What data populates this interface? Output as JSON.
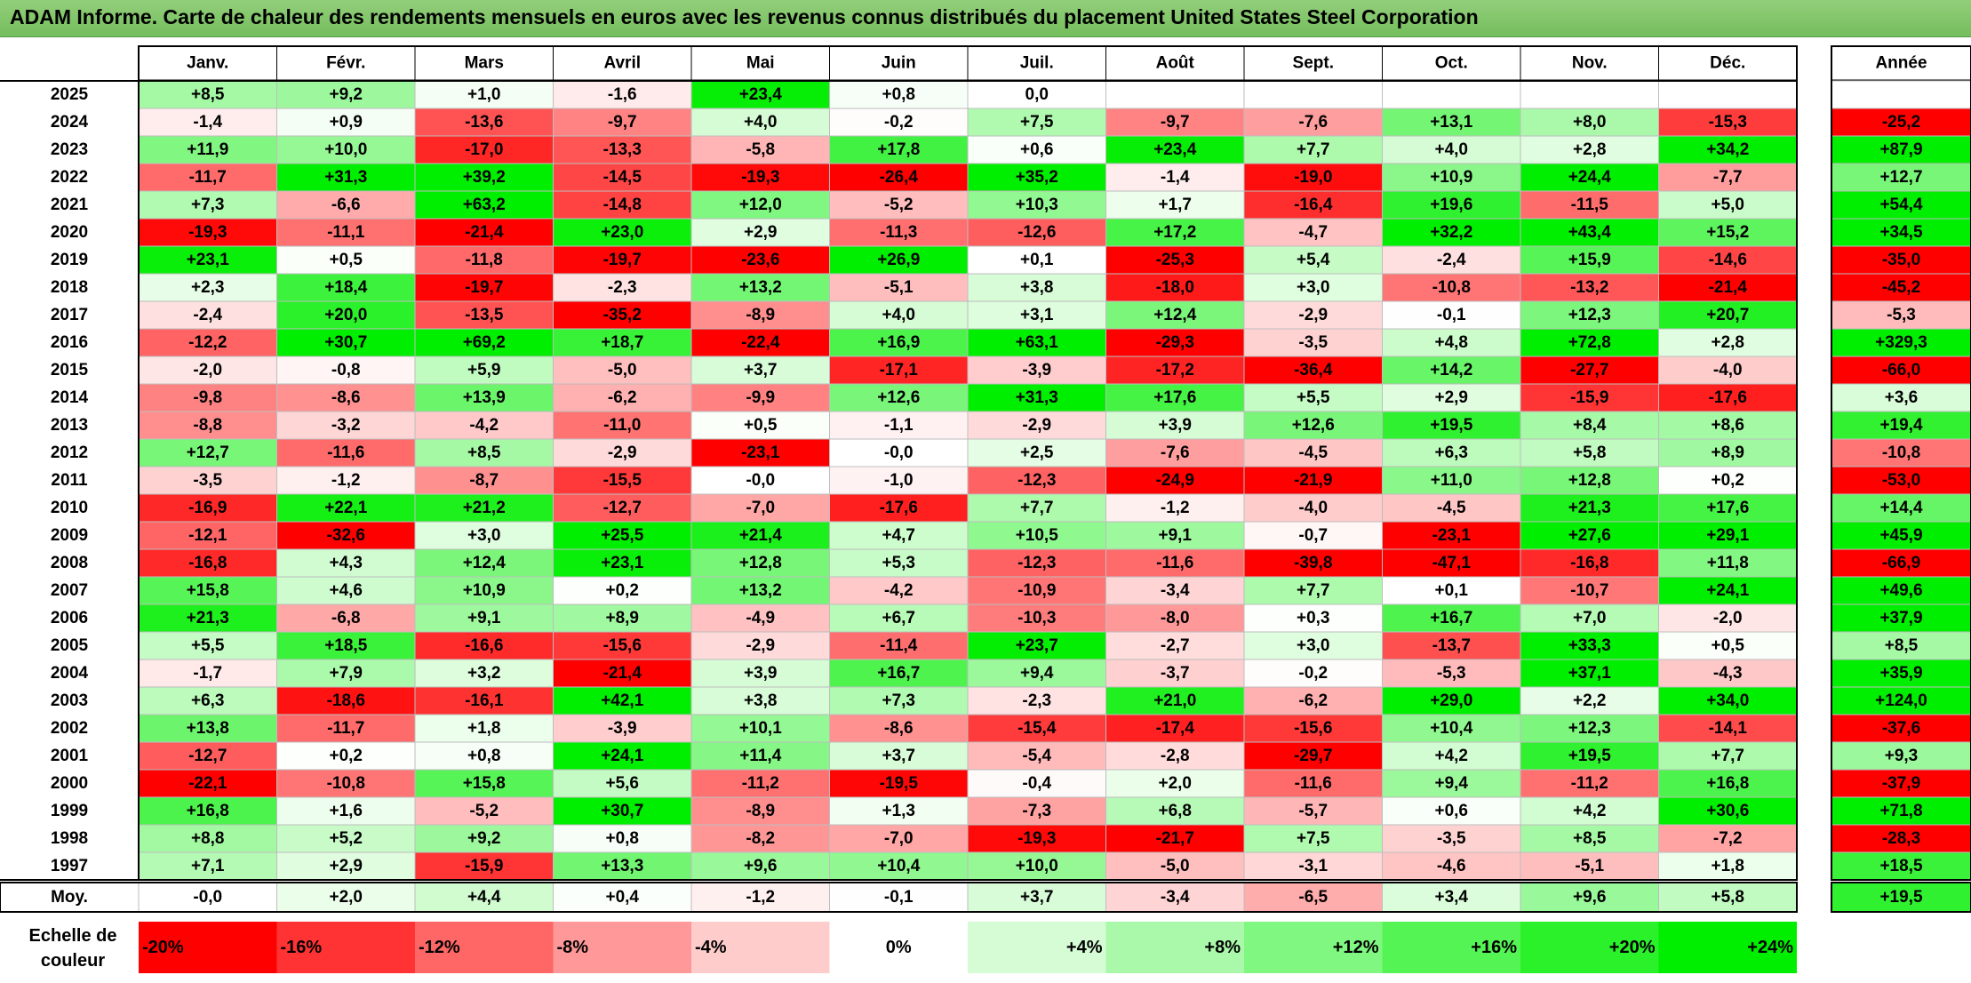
{
  "title": "ADAM Informe. Carte de chaleur des rendements mensuels en euros avec les revenus connus distribués du placement United States Steel Corporation",
  "chart_data": {
    "type": "heatmap",
    "title": "ADAM Informe. Carte de chaleur des rendements mensuels en euros avec les revenus connus distribués du placement United States Steel Corporation",
    "columns": [
      "Janv.",
      "Févr.",
      "Mars",
      "Avril",
      "Mai",
      "Juin",
      "Juil.",
      "Août",
      "Sept.",
      "Oct.",
      "Nov.",
      "Déc."
    ],
    "year_column_label": "Année",
    "average_row_label": "Moy.",
    "rows": [
      {
        "year": "2025",
        "months": [
          "+8,5",
          "+9,2",
          "+1,0",
          "-1,6",
          "+23,4",
          "+0,8",
          "0,0",
          "",
          "",
          "",
          "",
          ""
        ],
        "annual": ""
      },
      {
        "year": "2024",
        "months": [
          "-1,4",
          "+0,9",
          "-13,6",
          "-9,7",
          "+4,0",
          "-0,2",
          "+7,5",
          "-9,7",
          "-7,6",
          "+13,1",
          "+8,0",
          "-15,3"
        ],
        "annual": "-25,2"
      },
      {
        "year": "2023",
        "months": [
          "+11,9",
          "+10,0",
          "-17,0",
          "-13,3",
          "-5,8",
          "+17,8",
          "+0,6",
          "+23,4",
          "+7,7",
          "+4,0",
          "+2,8",
          "+34,2"
        ],
        "annual": "+87,9"
      },
      {
        "year": "2022",
        "months": [
          "-11,7",
          "+31,3",
          "+39,2",
          "-14,5",
          "-19,3",
          "-26,4",
          "+35,2",
          "-1,4",
          "-19,0",
          "+10,9",
          "+24,4",
          "-7,7"
        ],
        "annual": "+12,7"
      },
      {
        "year": "2021",
        "months": [
          "+7,3",
          "-6,6",
          "+63,2",
          "-14,8",
          "+12,0",
          "-5,2",
          "+10,3",
          "+1,7",
          "-16,4",
          "+19,6",
          "-11,5",
          "+5,0"
        ],
        "annual": "+54,4"
      },
      {
        "year": "2020",
        "months": [
          "-19,3",
          "-11,1",
          "-21,4",
          "+23,0",
          "+2,9",
          "-11,3",
          "-12,6",
          "+17,2",
          "-4,7",
          "+32,2",
          "+43,4",
          "+15,2"
        ],
        "annual": "+34,5"
      },
      {
        "year": "2019",
        "months": [
          "+23,1",
          "+0,5",
          "-11,8",
          "-19,7",
          "-23,6",
          "+26,9",
          "+0,1",
          "-25,3",
          "+5,4",
          "-2,4",
          "+15,9",
          "-14,6"
        ],
        "annual": "-35,0"
      },
      {
        "year": "2018",
        "months": [
          "+2,3",
          "+18,4",
          "-19,7",
          "-2,3",
          "+13,2",
          "-5,1",
          "+3,8",
          "-18,0",
          "+3,0",
          "-10,8",
          "-13,2",
          "-21,4"
        ],
        "annual": "-45,2"
      },
      {
        "year": "2017",
        "months": [
          "-2,4",
          "+20,0",
          "-13,5",
          "-35,2",
          "-8,9",
          "+4,0",
          "+3,1",
          "+12,4",
          "-2,9",
          "-0,1",
          "+12,3",
          "+20,7"
        ],
        "annual": "-5,3"
      },
      {
        "year": "2016",
        "months": [
          "-12,2",
          "+30,7",
          "+69,2",
          "+18,7",
          "-22,4",
          "+16,9",
          "+63,1",
          "-29,3",
          "-3,5",
          "+4,8",
          "+72,8",
          "+2,8"
        ],
        "annual": "+329,3"
      },
      {
        "year": "2015",
        "months": [
          "-2,0",
          "-0,8",
          "+5,9",
          "-5,0",
          "+3,7",
          "-17,1",
          "-3,9",
          "-17,2",
          "-36,4",
          "+14,2",
          "-27,7",
          "-4,0"
        ],
        "annual": "-66,0"
      },
      {
        "year": "2014",
        "months": [
          "-9,8",
          "-8,6",
          "+13,9",
          "-6,2",
          "-9,9",
          "+12,6",
          "+31,3",
          "+17,6",
          "+5,5",
          "+2,9",
          "-15,9",
          "-17,6"
        ],
        "annual": "+3,6"
      },
      {
        "year": "2013",
        "months": [
          "-8,8",
          "-3,2",
          "-4,2",
          "-11,0",
          "+0,5",
          "-1,1",
          "-2,9",
          "+3,9",
          "+12,6",
          "+19,5",
          "+8,4",
          "+8,6"
        ],
        "annual": "+19,4"
      },
      {
        "year": "2012",
        "months": [
          "+12,7",
          "-11,6",
          "+8,5",
          "-2,9",
          "-23,1",
          "-0,0",
          "+2,5",
          "-7,6",
          "-4,5",
          "+6,3",
          "+5,8",
          "+8,9"
        ],
        "annual": "-10,8"
      },
      {
        "year": "2011",
        "months": [
          "-3,5",
          "-1,2",
          "-8,7",
          "-15,5",
          "-0,0",
          "-1,0",
          "-12,3",
          "-24,9",
          "-21,9",
          "+11,0",
          "+12,8",
          "+0,2"
        ],
        "annual": "-53,0"
      },
      {
        "year": "2010",
        "months": [
          "-16,9",
          "+22,1",
          "+21,2",
          "-12,7",
          "-7,0",
          "-17,6",
          "+7,7",
          "-1,2",
          "-4,0",
          "-4,5",
          "+21,3",
          "+17,6"
        ],
        "annual": "+14,4"
      },
      {
        "year": "2009",
        "months": [
          "-12,1",
          "-32,6",
          "+3,0",
          "+25,5",
          "+21,4",
          "+4,7",
          "+10,5",
          "+9,1",
          "-0,7",
          "-23,1",
          "+27,6",
          "+29,1"
        ],
        "annual": "+45,9"
      },
      {
        "year": "2008",
        "months": [
          "-16,8",
          "+4,3",
          "+12,4",
          "+23,1",
          "+12,8",
          "+5,3",
          "-12,3",
          "-11,6",
          "-39,8",
          "-47,1",
          "-16,8",
          "+11,8"
        ],
        "annual": "-66,9"
      },
      {
        "year": "2007",
        "months": [
          "+15,8",
          "+4,6",
          "+10,9",
          "+0,2",
          "+13,2",
          "-4,2",
          "-10,9",
          "-3,4",
          "+7,7",
          "+0,1",
          "-10,7",
          "+24,1"
        ],
        "annual": "+49,6"
      },
      {
        "year": "2006",
        "months": [
          "+21,3",
          "-6,8",
          "+9,1",
          "+8,9",
          "-4,9",
          "+6,7",
          "-10,3",
          "-8,0",
          "+0,3",
          "+16,7",
          "+7,0",
          "-2,0"
        ],
        "annual": "+37,9"
      },
      {
        "year": "2005",
        "months": [
          "+5,5",
          "+18,5",
          "-16,6",
          "-15,6",
          "-2,9",
          "-11,4",
          "+23,7",
          "-2,7",
          "+3,0",
          "-13,7",
          "+33,3",
          "+0,5"
        ],
        "annual": "+8,5"
      },
      {
        "year": "2004",
        "months": [
          "-1,7",
          "+7,9",
          "+3,2",
          "-21,4",
          "+3,9",
          "+16,7",
          "+9,4",
          "-3,7",
          "-0,2",
          "-5,3",
          "+37,1",
          "-4,3"
        ],
        "annual": "+35,9"
      },
      {
        "year": "2003",
        "months": [
          "+6,3",
          "-18,6",
          "-16,1",
          "+42,1",
          "+3,8",
          "+7,3",
          "-2,3",
          "+21,0",
          "-6,2",
          "+29,0",
          "+2,2",
          "+34,0"
        ],
        "annual": "+124,0"
      },
      {
        "year": "2002",
        "months": [
          "+13,8",
          "-11,7",
          "+1,8",
          "-3,9",
          "+10,1",
          "-8,6",
          "-15,4",
          "-17,4",
          "-15,6",
          "+10,4",
          "+12,3",
          "-14,1"
        ],
        "annual": "-37,6"
      },
      {
        "year": "2001",
        "months": [
          "-12,7",
          "+0,2",
          "+0,8",
          "+24,1",
          "+11,4",
          "+3,7",
          "-5,4",
          "-2,8",
          "-29,7",
          "+4,2",
          "+19,5",
          "+7,7"
        ],
        "annual": "+9,3"
      },
      {
        "year": "2000",
        "months": [
          "-22,1",
          "-10,8",
          "+15,8",
          "+5,6",
          "-11,2",
          "-19,5",
          "-0,4",
          "+2,0",
          "-11,6",
          "+9,4",
          "-11,2",
          "+16,8"
        ],
        "annual": "-37,9"
      },
      {
        "year": "1999",
        "months": [
          "+16,8",
          "+1,6",
          "-5,2",
          "+30,7",
          "-8,9",
          "+1,3",
          "-7,3",
          "+6,8",
          "-5,7",
          "+0,6",
          "+4,2",
          "+30,6"
        ],
        "annual": "+71,8"
      },
      {
        "year": "1998",
        "months": [
          "+8,8",
          "+5,2",
          "+9,2",
          "+0,8",
          "-8,2",
          "-7,0",
          "-19,3",
          "-21,7",
          "+7,5",
          "-3,5",
          "+8,5",
          "-7,2"
        ],
        "annual": "-28,3"
      },
      {
        "year": "1997",
        "months": [
          "+7,1",
          "+2,9",
          "-15,9",
          "+13,3",
          "+9,6",
          "+10,4",
          "+10,0",
          "-5,0",
          "-3,1",
          "-4,6",
          "-5,1",
          "+1,8"
        ],
        "annual": "+18,5"
      }
    ],
    "average": {
      "months": [
        "-0,0",
        "+2,0",
        "+4,4",
        "+0,4",
        "-1,2",
        "-0,1",
        "+3,7",
        "-3,4",
        "-6,5",
        "+3,4",
        "+9,6",
        "+5,8"
      ],
      "annual": "+19,5"
    },
    "scale": {
      "label_line1": "Echelle de",
      "label_line2": "couleur",
      "stops": [
        "-20%",
        "-16%",
        "-12%",
        "-8%",
        "-4%",
        "0%",
        "+4%",
        "+8%",
        "+12%",
        "+16%",
        "+20%",
        "+24%"
      ]
    },
    "colors": {
      "strong_negative": "#ff0000",
      "neutral": "#ffffff",
      "strong_positive": "#00ee00",
      "title_bar": "#80c46a"
    }
  }
}
